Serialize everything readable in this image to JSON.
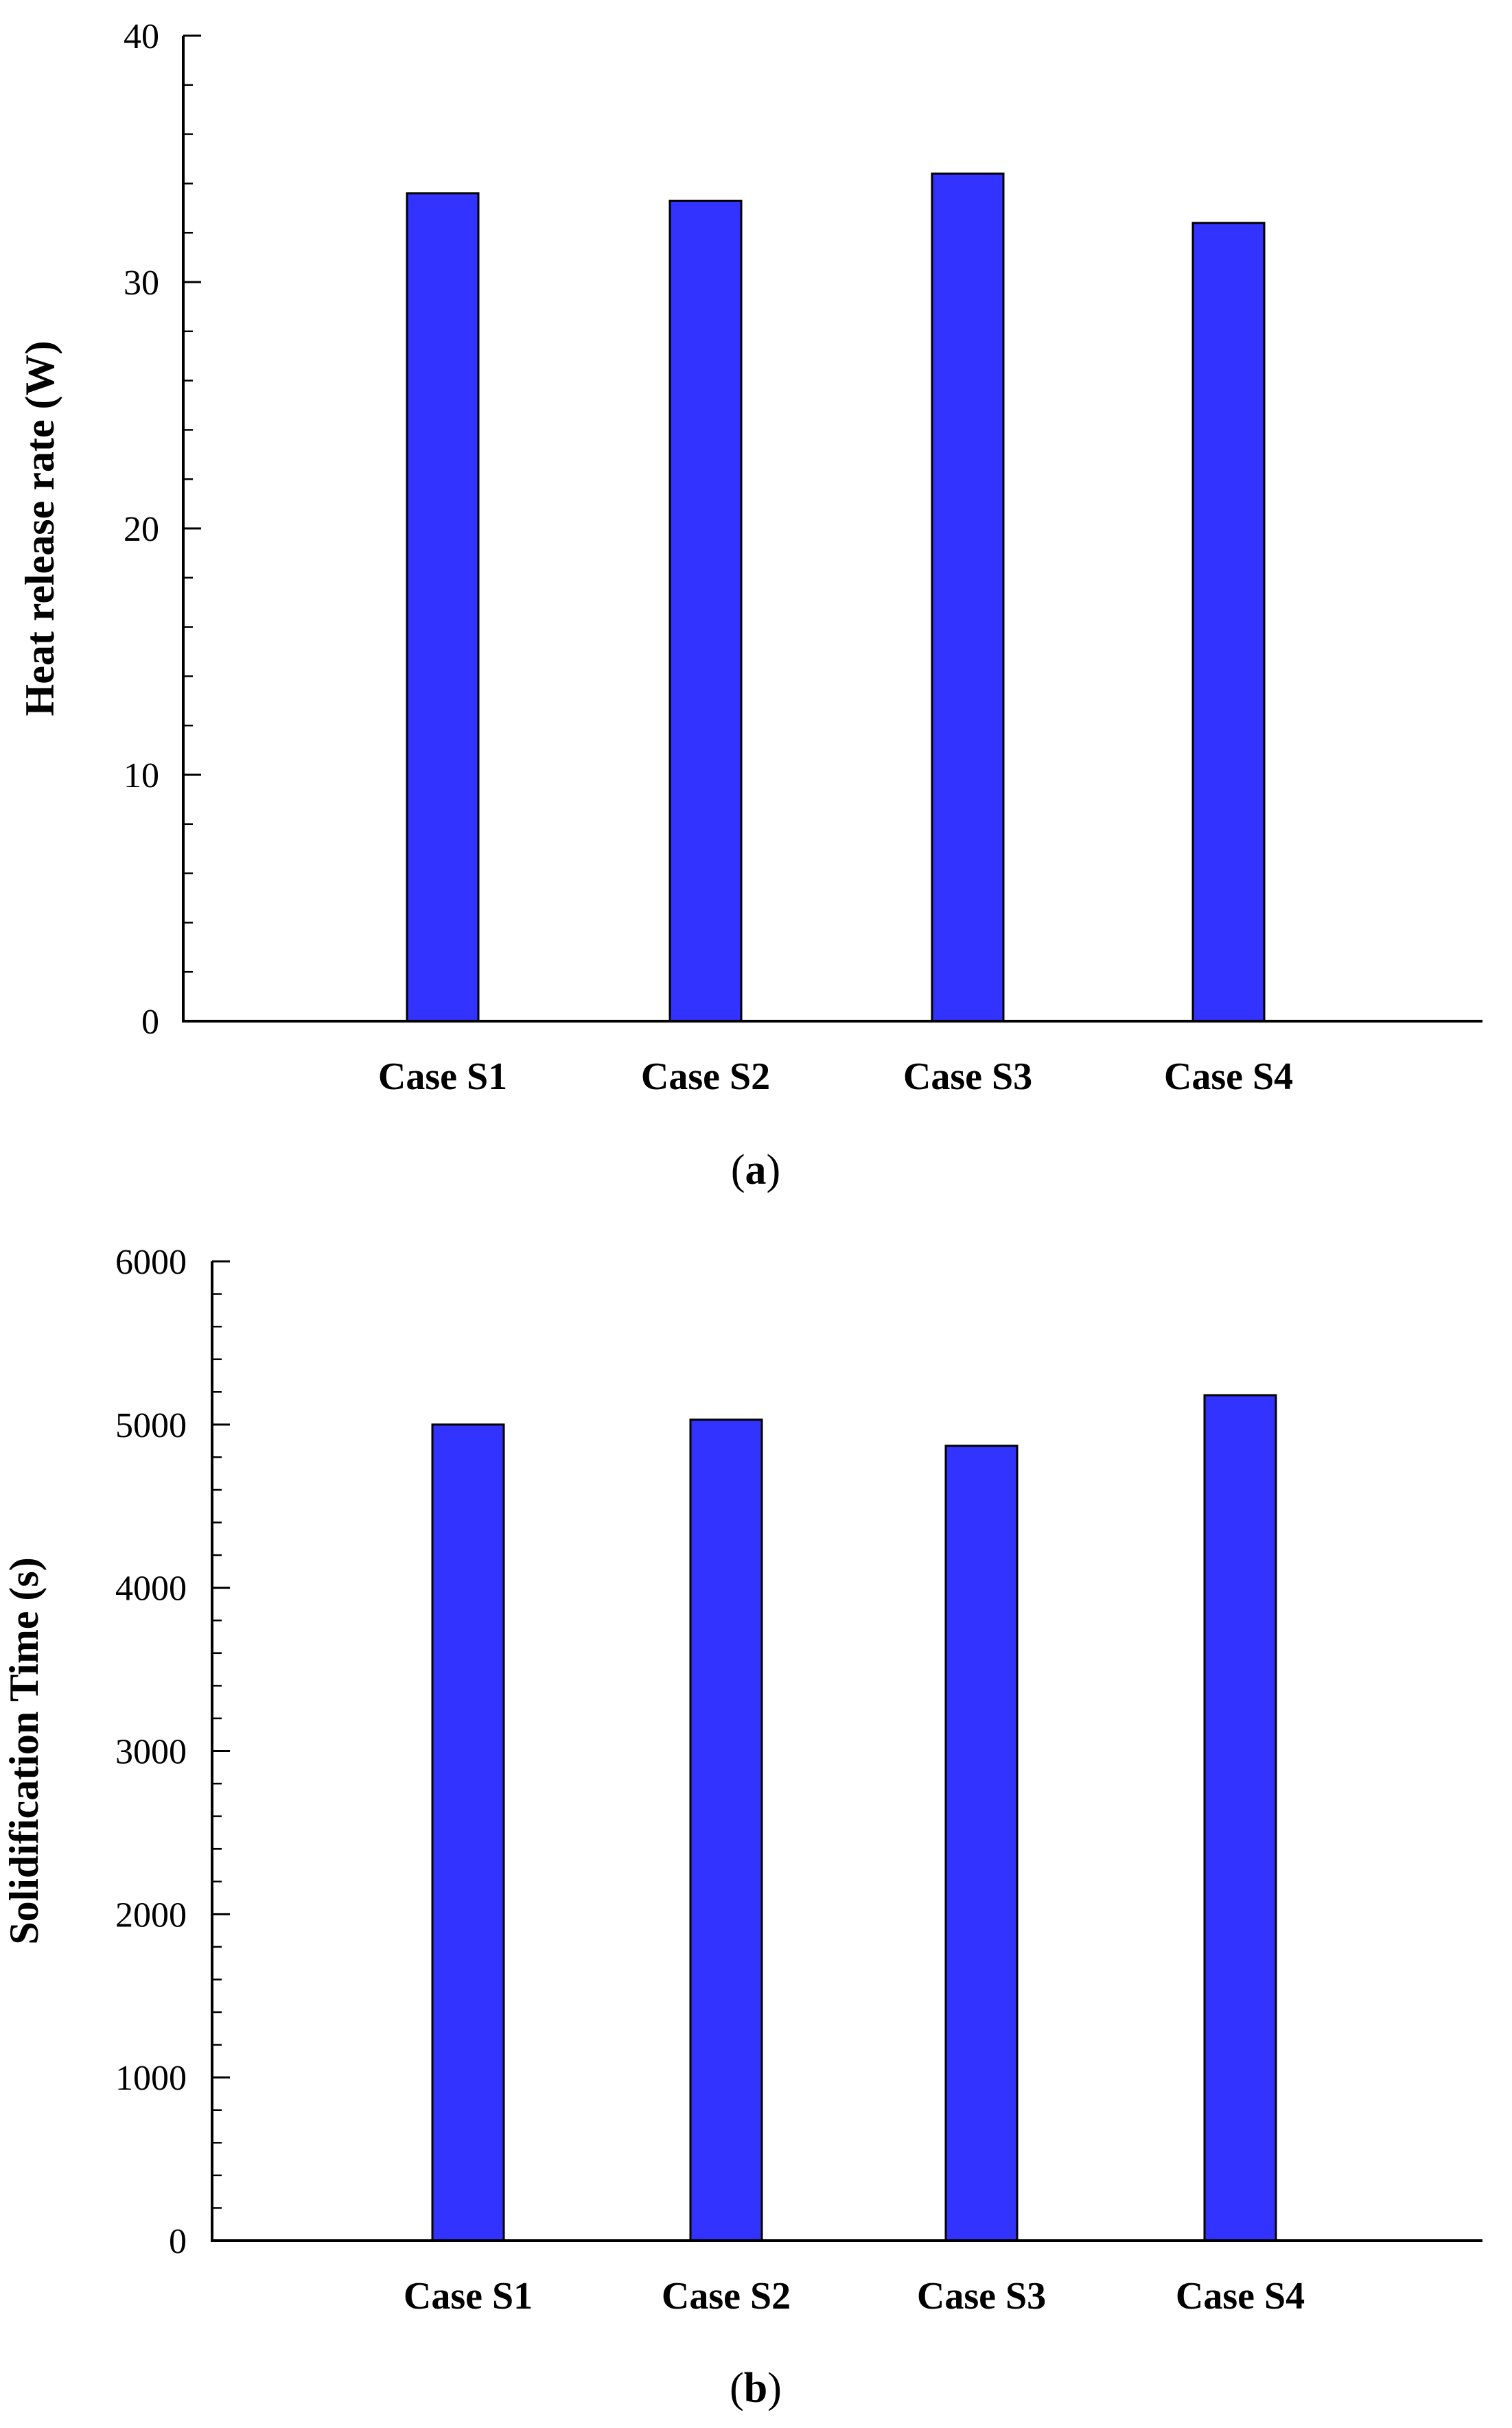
{
  "chart_data": [
    {
      "type": "bar",
      "panel_label": "a",
      "categories": [
        "Case S1",
        "Case S2",
        "Case S3",
        "Case S4"
      ],
      "values": [
        33.6,
        33.3,
        34.4,
        32.4
      ],
      "ylabel": "Heat release rate (W)",
      "xlabel": "",
      "ylim": [
        0,
        40
      ],
      "yticks": [
        "0",
        "10",
        "20",
        "30",
        "40"
      ],
      "minor_ticks_per_major": 5,
      "bar_color": "#3333ff",
      "grid": false,
      "legend": false
    },
    {
      "type": "bar",
      "panel_label": "b",
      "categories": [
        "Case S1",
        "Case S2",
        "Case S3",
        "Case S4"
      ],
      "values": [
        5000,
        5030,
        4870,
        5180
      ],
      "ylabel": "Solidification Time (s)",
      "xlabel": "",
      "ylim": [
        0,
        6000
      ],
      "yticks": [
        "0",
        "1000",
        "2000",
        "3000",
        "4000",
        "5000",
        "6000"
      ],
      "minor_ticks_per_major": 5,
      "bar_color": "#3333ff",
      "grid": false,
      "legend": false
    }
  ]
}
